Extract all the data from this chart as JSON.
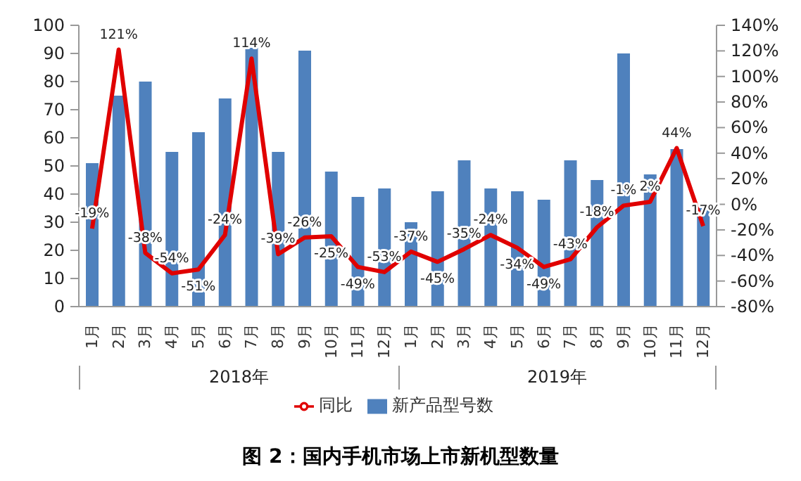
{
  "chart_data": {
    "type": "bar",
    "title": "图 2：国内手机市场上市新机型数量",
    "categories": [
      "1月",
      "2月",
      "3月",
      "4月",
      "5月",
      "6月",
      "7月",
      "8月",
      "9月",
      "10月",
      "11月",
      "12月",
      "1月",
      "2月",
      "3月",
      "4月",
      "5月",
      "6月",
      "7月",
      "8月",
      "9月",
      "10月",
      "11月",
      "12月"
    ],
    "annotations": [
      "2018年",
      "2019年"
    ],
    "series": [
      {
        "name": "新产品型号数",
        "type": "bar",
        "color": "#4f81bd",
        "values": [
          51,
          75,
          80,
          55,
          62,
          74,
          92,
          55,
          91,
          48,
          39,
          42,
          30,
          41,
          52,
          42,
          41,
          38,
          52,
          45,
          90,
          47,
          56,
          35
        ]
      },
      {
        "name": "同比",
        "type": "line",
        "axis": "y2",
        "color": "#e00000",
        "values": [
          -19,
          121,
          -38,
          -54,
          -51,
          -24,
          114,
          -39,
          -26,
          -25,
          -49,
          -53,
          -37,
          -45,
          -35,
          -24,
          -34,
          -49,
          -43,
          -18,
          -1,
          2,
          44,
          -17
        ],
        "value_labels": [
          "-19%",
          "121%",
          "-38%",
          "-54%",
          "-51%",
          "-24%",
          "114%",
          "-39%",
          "-26%",
          "-25%",
          "-49%",
          "-53%",
          "-37%",
          "-45%",
          "-35%",
          "-24%",
          "-34%",
          "-49%",
          "-43%",
          "-18%",
          "-1%",
          "2%",
          "44%",
          "-17%"
        ]
      }
    ],
    "ylim": [
      0,
      100
    ],
    "yticks": [
      0,
      10,
      20,
      30,
      40,
      50,
      60,
      70,
      80,
      90,
      100
    ],
    "y2lim": [
      -80,
      140
    ],
    "y2ticks": [
      {
        "value": -80,
        "label": "-80%"
      },
      {
        "value": -60,
        "label": "-60%"
      },
      {
        "value": -40,
        "label": "-40%"
      },
      {
        "value": -20,
        "label": "-20%"
      },
      {
        "value": 0,
        "label": "0%"
      },
      {
        "value": 20,
        "label": "20%"
      },
      {
        "value": 40,
        "label": "40%"
      },
      {
        "value": 60,
        "label": "60%"
      },
      {
        "value": 80,
        "label": "80%"
      },
      {
        "value": 100,
        "label": "100%"
      },
      {
        "value": 120,
        "label": "120%"
      },
      {
        "value": 140,
        "label": "140%"
      }
    ],
    "grid": false,
    "legend": "bottom",
    "marker": "none",
    "line_style": "solid"
  }
}
